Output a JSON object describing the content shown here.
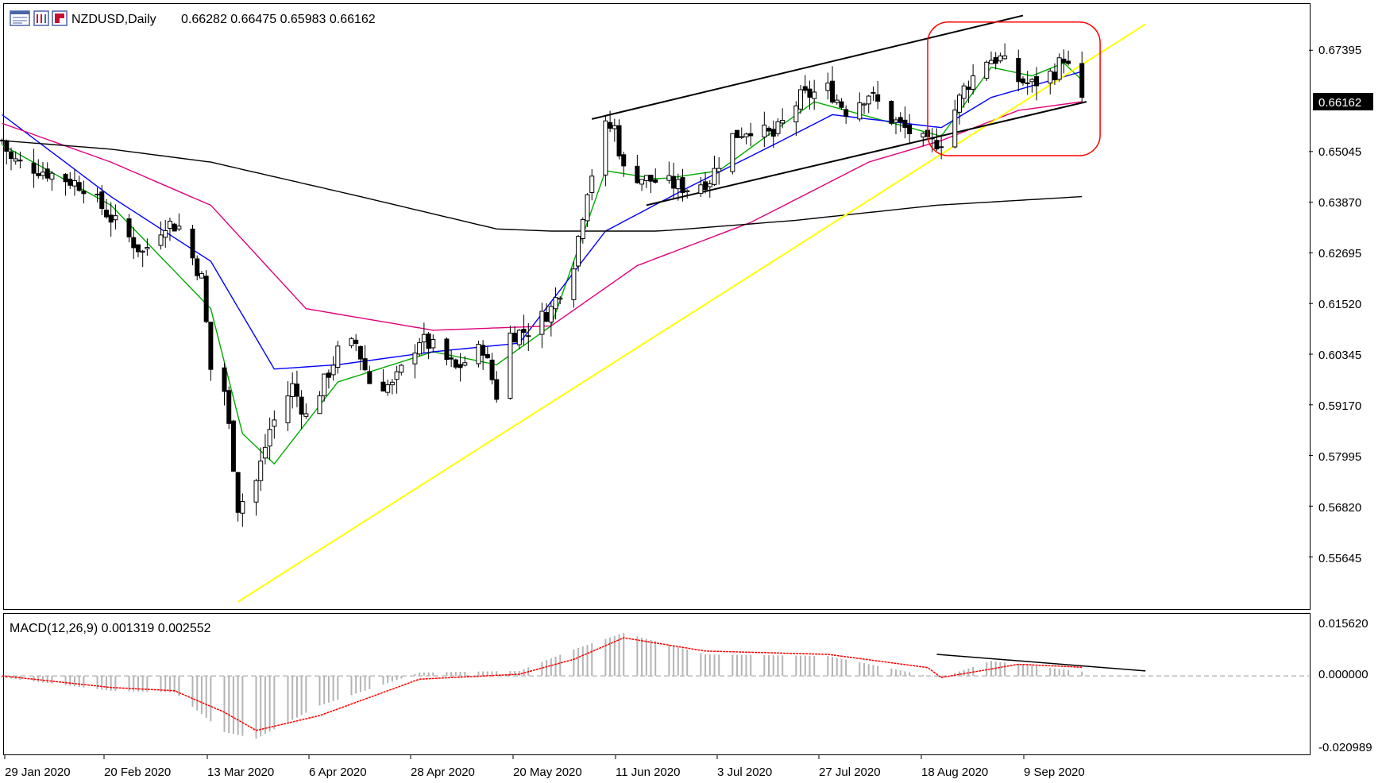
{
  "toolbar": {
    "icons": [
      "chart-window-icon",
      "symbol-list-icon",
      "chart-properties-icon"
    ]
  },
  "header": {
    "symbol_timeframe": "NZDUSD,Daily",
    "ohlc": "0.66282 0.66475 0.65983 0.66162"
  },
  "price_axis": {
    "labels": [
      "0.67395",
      "0.65045",
      "0.63870",
      "0.62695",
      "0.61520",
      "0.60345",
      "0.59170",
      "0.57995",
      "0.56820",
      "0.55645"
    ],
    "current_price": "0.66162"
  },
  "macd": {
    "title": "MACD(12,26,9) 0.001319 0.002552",
    "axis_labels": [
      "0.015620",
      "0.000000",
      "-0.020989"
    ]
  },
  "date_axis": {
    "labels": [
      "29 Jan 2020",
      "20 Feb 2020",
      "13 Mar 2020",
      "6 Apr 2020",
      "28 Apr 2020",
      "20 May 2020",
      "11 Jun 2020",
      "3 Jul 2020",
      "27 Jul 2020",
      "18 Aug 2020",
      "9 Sep 2020"
    ]
  },
  "colors": {
    "ema_fast": "#00aa00",
    "ema_mid": "#0000ff",
    "ema_slow": "#e0007a",
    "sma_long": "#000000",
    "trendline": "#ffff00",
    "highlight_box": "#ff0000",
    "macd_hist": "#b4b4b4",
    "macd_signal": "#ff0000",
    "bull_candle": "#ffffff",
    "bear_candle": "#000000"
  },
  "chart_data": {
    "type": "candlestick",
    "symbol": "NZDUSD",
    "timeframe": "Daily",
    "last_ohlc": {
      "open": 0.66282,
      "high": 0.66475,
      "low": 0.65983,
      "close": 0.66162
    },
    "y_range": [
      0.5445,
      0.6845
    ],
    "macd_range": [
      -0.0235,
      0.0185
    ],
    "x_range_dates": [
      "2020-01-27",
      "2020-09-21"
    ],
    "closes_anchors": [
      [
        "2020-01-27",
        0.653
      ],
      [
        "2020-01-29",
        0.6485
      ],
      [
        "2020-02-05",
        0.646
      ],
      [
        "2020-02-14",
        0.6425
      ],
      [
        "2020-02-20",
        0.635
      ],
      [
        "2020-02-27",
        0.627
      ],
      [
        "2020-03-03",
        0.634
      ],
      [
        "2020-03-06",
        0.633
      ],
      [
        "2020-03-11",
        0.621
      ],
      [
        "2020-03-13",
        0.6
      ],
      [
        "2020-03-16",
        0.595
      ],
      [
        "2020-03-18",
        0.578
      ],
      [
        "2020-03-19",
        0.568
      ],
      [
        "2020-03-23",
        0.574
      ],
      [
        "2020-03-26",
        0.586
      ],
      [
        "2020-03-31",
        0.596
      ],
      [
        "2020-04-03",
        0.589
      ],
      [
        "2020-04-07",
        0.597
      ],
      [
        "2020-04-10",
        0.604
      ],
      [
        "2020-04-14",
        0.606
      ],
      [
        "2020-04-17",
        0.597
      ],
      [
        "2020-04-22",
        0.596
      ],
      [
        "2020-04-28",
        0.607
      ],
      [
        "2020-05-01",
        0.605
      ],
      [
        "2020-05-06",
        0.6
      ],
      [
        "2020-05-12",
        0.605
      ],
      [
        "2020-05-15",
        0.594
      ],
      [
        "2020-05-18",
        0.608
      ],
      [
        "2020-05-22",
        0.609
      ],
      [
        "2020-05-27",
        0.614
      ],
      [
        "2020-06-01",
        0.625
      ],
      [
        "2020-06-04",
        0.642
      ],
      [
        "2020-06-08",
        0.656
      ],
      [
        "2020-06-10",
        0.656
      ],
      [
        "2020-06-12",
        0.646
      ],
      [
        "2020-06-17",
        0.644
      ],
      [
        "2020-06-22",
        0.643
      ],
      [
        "2020-06-26",
        0.642
      ],
      [
        "2020-07-01",
        0.644
      ],
      [
        "2020-07-06",
        0.654
      ],
      [
        "2020-07-10",
        0.656
      ],
      [
        "2020-07-15",
        0.654
      ],
      [
        "2020-07-21",
        0.663
      ],
      [
        "2020-07-24",
        0.664
      ],
      [
        "2020-07-27",
        0.665
      ],
      [
        "2020-07-31",
        0.66
      ],
      [
        "2020-08-05",
        0.664
      ],
      [
        "2020-08-10",
        0.658
      ],
      [
        "2020-08-14",
        0.655
      ],
      [
        "2020-08-18",
        0.652
      ],
      [
        "2020-08-21",
        0.653
      ],
      [
        "2020-08-26",
        0.665
      ],
      [
        "2020-08-31",
        0.672
      ],
      [
        "2020-09-03",
        0.672
      ],
      [
        "2020-09-07",
        0.667
      ],
      [
        "2020-09-10",
        0.666
      ],
      [
        "2020-09-15",
        0.669
      ],
      [
        "2020-09-17",
        0.6725
      ],
      [
        "2020-09-21",
        0.6616
      ]
    ],
    "moving_averages": [
      {
        "color_key": "ema_fast",
        "points": [
          [
            "2020-01-27",
            0.652
          ],
          [
            "2020-02-20",
            0.638
          ],
          [
            "2020-03-13",
            0.614
          ],
          [
            "2020-03-20",
            0.585
          ],
          [
            "2020-03-27",
            0.578
          ],
          [
            "2020-04-10",
            0.597
          ],
          [
            "2020-05-01",
            0.604
          ],
          [
            "2020-05-15",
            0.601
          ],
          [
            "2020-05-27",
            0.61
          ],
          [
            "2020-06-08",
            0.646
          ],
          [
            "2020-06-20",
            0.644
          ],
          [
            "2020-07-03",
            0.646
          ],
          [
            "2020-07-24",
            0.662
          ],
          [
            "2020-08-14",
            0.656
          ],
          [
            "2020-08-21",
            0.654
          ],
          [
            "2020-09-01",
            0.67
          ],
          [
            "2020-09-10",
            0.668
          ],
          [
            "2020-09-17",
            0.671
          ],
          [
            "2020-09-21",
            0.667
          ]
        ]
      },
      {
        "color_key": "ema_mid",
        "points": [
          [
            "2020-01-27",
            0.659
          ],
          [
            "2020-02-20",
            0.64
          ],
          [
            "2020-03-13",
            0.625
          ],
          [
            "2020-03-27",
            0.6
          ],
          [
            "2020-04-10",
            0.601
          ],
          [
            "2020-05-01",
            0.604
          ],
          [
            "2020-05-20",
            0.606
          ],
          [
            "2020-06-08",
            0.632
          ],
          [
            "2020-06-26",
            0.642
          ],
          [
            "2020-07-15",
            0.652
          ],
          [
            "2020-07-28",
            0.659
          ],
          [
            "2020-08-21",
            0.656
          ],
          [
            "2020-09-01",
            0.663
          ],
          [
            "2020-09-21",
            0.669
          ]
        ]
      },
      {
        "color_key": "ema_slow",
        "points": [
          [
            "2020-01-27",
            0.657
          ],
          [
            "2020-02-20",
            0.648
          ],
          [
            "2020-03-13",
            0.638
          ],
          [
            "2020-04-03",
            0.614
          ],
          [
            "2020-05-01",
            0.609
          ],
          [
            "2020-05-27",
            0.61
          ],
          [
            "2020-06-15",
            0.624
          ],
          [
            "2020-07-10",
            0.634
          ],
          [
            "2020-08-05",
            0.648
          ],
          [
            "2020-08-21",
            0.653
          ],
          [
            "2020-09-07",
            0.66
          ],
          [
            "2020-09-21",
            0.662
          ]
        ]
      },
      {
        "color_key": "sma_long",
        "points": [
          [
            "2020-01-27",
            0.653
          ],
          [
            "2020-02-20",
            0.651
          ],
          [
            "2020-03-13",
            0.648
          ],
          [
            "2020-04-15",
            0.64
          ],
          [
            "2020-05-15",
            0.6325
          ],
          [
            "2020-05-27",
            0.632
          ],
          [
            "2020-06-20",
            0.632
          ],
          [
            "2020-07-20",
            0.6345
          ],
          [
            "2020-08-20",
            0.638
          ],
          [
            "2020-09-21",
            0.64
          ]
        ]
      }
    ],
    "trendlines": [
      {
        "kind": "support",
        "color_key": "trendline",
        "from": [
          "2020-03-19",
          0.546
        ],
        "to": [
          "2020-10-05",
          0.68
        ]
      },
      {
        "kind": "channel-upper",
        "from": [
          "2020-06-05",
          0.658
        ],
        "to": [
          "2020-09-08",
          0.682
        ]
      },
      {
        "kind": "channel-lower",
        "from": [
          "2020-06-17",
          0.638
        ],
        "to": [
          "2020-09-22",
          0.662
        ]
      }
    ],
    "highlight_box": {
      "from": [
        "2020-08-18",
        0.6805
      ],
      "to": [
        "2020-09-25",
        0.6495
      ]
    },
    "macd_signal_anchors": [
      [
        "2020-01-27",
        0.0
      ],
      [
        "2020-02-20",
        -0.0035
      ],
      [
        "2020-03-05",
        -0.0045
      ],
      [
        "2020-03-16",
        -0.011
      ],
      [
        "2020-03-23",
        -0.0165
      ],
      [
        "2020-04-06",
        -0.012
      ],
      [
        "2020-04-28",
        -0.001
      ],
      [
        "2020-05-20",
        0.0005
      ],
      [
        "2020-06-01",
        0.005
      ],
      [
        "2020-06-12",
        0.0115
      ],
      [
        "2020-06-30",
        0.0075
      ],
      [
        "2020-07-27",
        0.0065
      ],
      [
        "2020-08-18",
        0.0025
      ],
      [
        "2020-08-21",
        -0.0005
      ],
      [
        "2020-09-07",
        0.0035
      ],
      [
        "2020-09-21",
        0.0026
      ]
    ],
    "macd_hist_anchors": [
      [
        "2020-01-27",
        -0.0005
      ],
      [
        "2020-02-20",
        -0.0045
      ],
      [
        "2020-03-05",
        -0.005
      ],
      [
        "2020-03-16",
        -0.017
      ],
      [
        "2020-03-23",
        -0.019
      ],
      [
        "2020-04-06",
        -0.009
      ],
      [
        "2020-04-28",
        0.001
      ],
      [
        "2020-05-20",
        0.0015
      ],
      [
        "2020-06-01",
        0.008
      ],
      [
        "2020-06-12",
        0.013
      ],
      [
        "2020-06-30",
        0.0065
      ],
      [
        "2020-07-27",
        0.006
      ],
      [
        "2020-08-18",
        0.0
      ],
      [
        "2020-08-21",
        -0.0005
      ],
      [
        "2020-09-01",
        0.0045
      ],
      [
        "2020-09-21",
        0.0013
      ]
    ],
    "macd_divergence_line": {
      "from": [
        "2020-08-20",
        0.0065
      ],
      "to": [
        "2020-10-05",
        0.0015
      ]
    }
  }
}
